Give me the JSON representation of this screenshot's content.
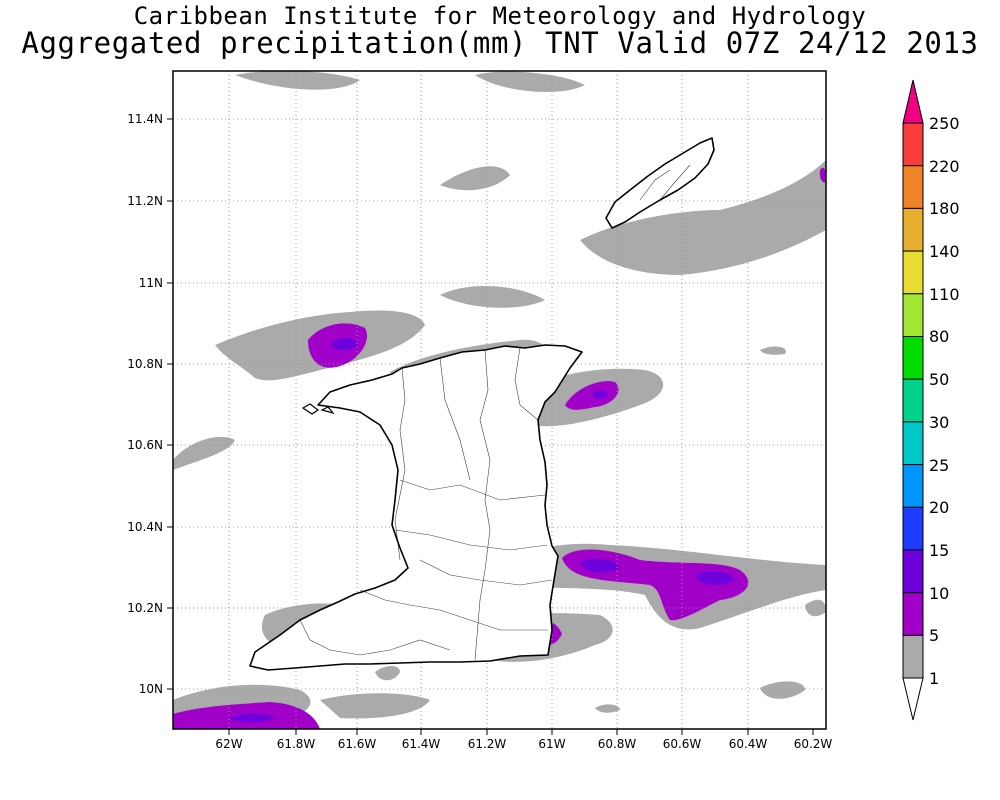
{
  "title": {
    "line1": "Caribbean Institute for Meteorology and Hydrology",
    "line2": "Aggregated precipitation(mm) TNT Valid 07Z 24/12 2013"
  },
  "axes": {
    "x_ticks": [
      "62W",
      "61.8W",
      "61.6W",
      "61.4W",
      "61.2W",
      "61W",
      "60.8W",
      "60.6W",
      "60.4W",
      "60.2W"
    ],
    "y_ticks": [
      "10N",
      "10.2N",
      "10.4N",
      "10.6N",
      "10.8N",
      "11N",
      "11.2N",
      "11.4N"
    ]
  },
  "colorbar": {
    "labels": [
      "1",
      "5",
      "10",
      "15",
      "20",
      "25",
      "30",
      "50",
      "80",
      "110",
      "140",
      "180",
      "220",
      "250"
    ],
    "colors": {
      "1": "#aaaaaa",
      "5": "#a000c8",
      "10": "#6e00dc",
      "15": "#1e3cff",
      "20": "#0096ff",
      "25": "#00c8c8",
      "30": "#00d28c",
      "50": "#00dc00",
      "80": "#a0e632",
      "110": "#e6dc32",
      "140": "#e6af2d",
      "180": "#f08228",
      "220": "#fa3c3c",
      "250": "#f00082"
    }
  },
  "map": {
    "region": "Trinidad and Tobago",
    "lon_range": [
      -62.15,
      -60.15
    ],
    "lat_range": [
      9.9,
      11.5
    ],
    "grid": "dotted"
  }
}
